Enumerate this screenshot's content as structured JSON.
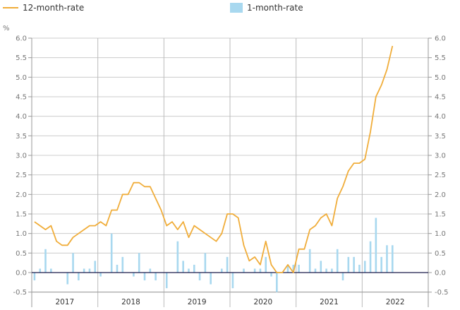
{
  "legend": {
    "line_label": "12-month-rate",
    "bar_label": "1-month-rate"
  },
  "axis": {
    "y_unit": "%",
    "y_ticks": [
      "6.0",
      "5.5",
      "5.0",
      "4.5",
      "4.0",
      "3.5",
      "3.0",
      "2.5",
      "2.0",
      "1.5",
      "1.0",
      "0.5",
      "0.0",
      "-0.5"
    ],
    "x_years": [
      "2017",
      "2018",
      "2019",
      "2020",
      "2021",
      "2022"
    ]
  },
  "colors": {
    "line": "#f0ad3a",
    "bar": "#a8d8ef",
    "zero_line": "#1a1a4a",
    "grid": "#cccccc"
  },
  "chart_data": {
    "type": "line+bar",
    "title": "",
    "xlabel": "",
    "ylabel": "%",
    "ylim": [
      -0.5,
      6.0
    ],
    "grid": true,
    "legend_position": "top",
    "categories_years": [
      "2017",
      "2018",
      "2019",
      "2020",
      "2021",
      "2022"
    ],
    "series": [
      {
        "name": "12-month-rate",
        "type": "line",
        "start": "2017-01",
        "values": [
          1.3,
          1.2,
          1.1,
          1.2,
          0.8,
          0.7,
          0.7,
          0.9,
          1.0,
          1.1,
          1.2,
          1.2,
          1.3,
          1.2,
          1.6,
          1.6,
          2.0,
          2.0,
          2.3,
          2.3,
          2.2,
          2.2,
          1.9,
          1.6,
          1.2,
          1.3,
          1.1,
          1.3,
          0.9,
          1.2,
          1.1,
          1.0,
          0.9,
          0.8,
          1.0,
          1.5,
          1.5,
          1.4,
          0.7,
          0.3,
          0.4,
          0.2,
          0.8,
          0.2,
          0.0,
          0.0,
          0.2,
          0.0,
          0.6,
          0.6,
          1.1,
          1.2,
          1.4,
          1.5,
          1.2,
          1.9,
          2.2,
          2.6,
          2.8,
          2.8,
          2.9,
          3.6,
          4.5,
          4.8,
          5.2,
          5.8
        ]
      },
      {
        "name": "1-month-rate",
        "type": "bar",
        "start": "2017-01",
        "values": [
          -0.2,
          0.1,
          0.6,
          0.1,
          0.0,
          0.0,
          -0.3,
          0.5,
          -0.2,
          0.1,
          0.1,
          0.3,
          -0.1,
          0.0,
          1.0,
          0.2,
          0.4,
          0.0,
          -0.1,
          0.5,
          -0.2,
          0.1,
          -0.2,
          0.0,
          -0.4,
          0.0,
          0.8,
          0.3,
          0.1,
          0.2,
          -0.2,
          0.5,
          -0.3,
          0.0,
          0.1,
          0.4,
          -0.4,
          0.0,
          0.1,
          0.0,
          0.1,
          0.1,
          0.4,
          -0.1,
          -0.5,
          0.0,
          0.2,
          0.2,
          0.2,
          0.0,
          0.6,
          0.1,
          0.3,
          0.1,
          0.1,
          0.6,
          -0.2,
          0.4,
          0.4,
          0.2,
          0.3,
          0.8,
          1.4,
          0.4,
          0.7,
          0.7
        ]
      }
    ]
  }
}
